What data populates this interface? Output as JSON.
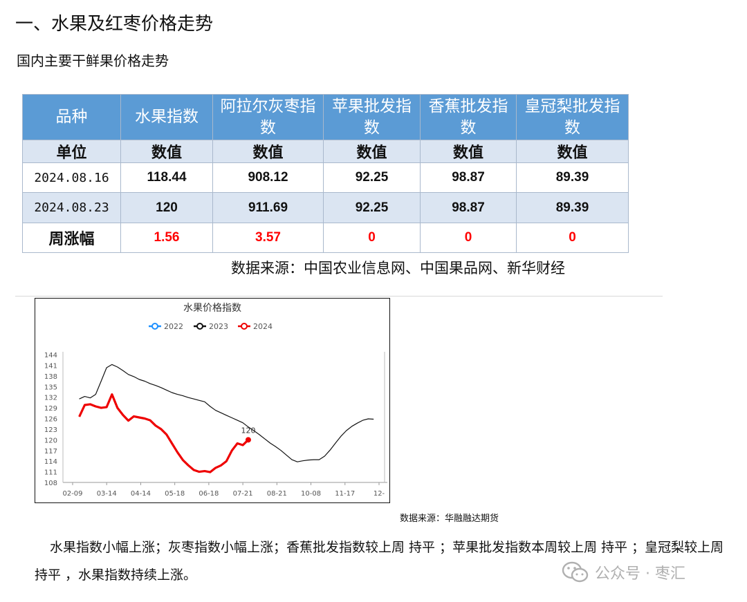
{
  "heading": "一、水果及红枣价格走势",
  "subheading": "国内主要干鲜果价格走势",
  "table": {
    "headers": [
      "品种",
      "水果指数",
      "阿拉尔灰枣指数",
      "苹果批发指数",
      "香蕉批发指数",
      "皇冠梨批发指数"
    ],
    "unit_row": [
      "单位",
      "数值",
      "数值",
      "数值",
      "数值",
      "数值"
    ],
    "rows": [
      [
        "2024.08.16",
        "118.44",
        "908.12",
        "92.25",
        "98.87",
        "89.39"
      ],
      [
        "2024.08.23",
        "120",
        "911.69",
        "92.25",
        "98.87",
        "89.39"
      ]
    ],
    "change_row": [
      "周涨幅",
      "1.56",
      "3.57",
      "0",
      "0",
      "0"
    ]
  },
  "source_table": "数据来源：中国农业信息网、中国果品网、新华财经",
  "chart": {
    "title": "水果价格指数",
    "legend": [
      {
        "name": "2022",
        "color": "#1e90ff"
      },
      {
        "name": "2023",
        "color": "#111111"
      },
      {
        "name": "2024",
        "color": "#ee0000"
      }
    ],
    "end_label": "120"
  },
  "chart_data": {
    "type": "line",
    "title": "水果价格指数",
    "ylim": [
      108,
      144
    ],
    "yticks": [
      "144",
      "141",
      "138",
      "135",
      "132",
      "129",
      "126",
      "123",
      "120",
      "117",
      "114",
      "111",
      "108"
    ],
    "xticks": [
      "02-09",
      "03-14",
      "04-14",
      "05-18",
      "06-18",
      "07-21",
      "08-21",
      "10-08",
      "11-17",
      "12-"
    ],
    "grid": false,
    "legend_position": "top",
    "series": [
      {
        "name": "2023",
        "color": "#111111",
        "values": [
          131.5,
          132.2,
          131.8,
          132.8,
          136.5,
          140.3,
          141.2,
          140.5,
          139.5,
          138.4,
          137.8,
          137.0,
          136.5,
          135.8,
          135.3,
          134.7,
          134.0,
          133.3,
          132.8,
          132.4,
          131.9,
          131.5,
          131.1,
          130.7,
          129.4,
          128.3,
          127.6,
          126.9,
          126.2,
          125.5,
          124.8,
          123.6,
          122.6,
          121.5,
          120.3,
          119.1,
          118.1,
          117.0,
          115.7,
          114.4,
          113.8,
          114.1,
          114.3,
          114.4,
          114.4,
          115.4,
          117.1,
          119.1,
          121.0,
          122.6,
          123.8,
          124.7,
          125.5,
          125.9,
          125.8
        ]
      },
      {
        "name": "2024",
        "color": "#ee0000",
        "values": [
          126.5,
          129.8,
          130.0,
          129.4,
          129.0,
          129.2,
          132.8,
          129.0,
          127.0,
          125.4,
          126.6,
          126.3,
          126.0,
          125.5,
          124.0,
          123.0,
          121.5,
          119.0,
          116.5,
          114.3,
          112.8,
          111.5,
          111.0,
          111.2,
          110.9,
          112.1,
          112.8,
          114.0,
          117.0,
          119.0,
          118.5,
          120.0
        ]
      },
      {
        "name": "2022",
        "color": "#1e90ff",
        "values": []
      }
    ]
  },
  "source_chart": "数据来源：华融融达期货",
  "paragraph": "水果指数小幅上涨；灰枣指数小幅上涨；香蕉批发指数较上周 持平 ；苹果批发指数本周较上周 持平 ；皇冠梨较上周 持平 ，水果指数持续上涨。",
  "watermark": {
    "icon": "wechat-icon",
    "text": "公众号 · 枣汇"
  }
}
